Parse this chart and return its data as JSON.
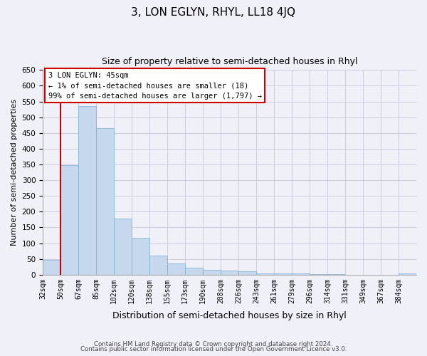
{
  "title": "3, LON EGLYN, RHYL, LL18 4JQ",
  "subtitle": "Size of property relative to semi-detached houses in Rhyl",
  "xlabel": "Distribution of semi-detached houses by size in Rhyl",
  "ylabel": "Number of semi-detached properties",
  "bin_labels": [
    "32sqm",
    "50sqm",
    "67sqm",
    "85sqm",
    "102sqm",
    "120sqm",
    "138sqm",
    "155sqm",
    "173sqm",
    "190sqm",
    "208sqm",
    "226sqm",
    "243sqm",
    "261sqm",
    "279sqm",
    "296sqm",
    "314sqm",
    "331sqm",
    "349sqm",
    "367sqm",
    "384sqm"
  ],
  "bar_heights": [
    47,
    348,
    535,
    465,
    178,
    116,
    60,
    35,
    22,
    15,
    13,
    10,
    5,
    3,
    3,
    2,
    1,
    0,
    0,
    0,
    5
  ],
  "bar_color": "#c5d8ee",
  "bar_edgecolor": "#7aaed0",
  "ylim": [
    0,
    650
  ],
  "yticks": [
    0,
    50,
    100,
    150,
    200,
    250,
    300,
    350,
    400,
    450,
    500,
    550,
    600,
    650
  ],
  "vline_color": "#cc0000",
  "vline_x_index": 1.0,
  "annotation_title": "3 LON EGLYN: 45sqm",
  "annotation_line2": "← 1% of semi-detached houses are smaller (18)",
  "annotation_line3": "99% of semi-detached houses are larger (1,797) →",
  "annotation_box_edgecolor": "#cc0000",
  "footer_line1": "Contains HM Land Registry data © Crown copyright and database right 2024.",
  "footer_line2": "Contains public sector information licensed under the Open Government Licence v3.0.",
  "bg_color": "#f0f0f8",
  "grid_color": "#c8c8dc"
}
